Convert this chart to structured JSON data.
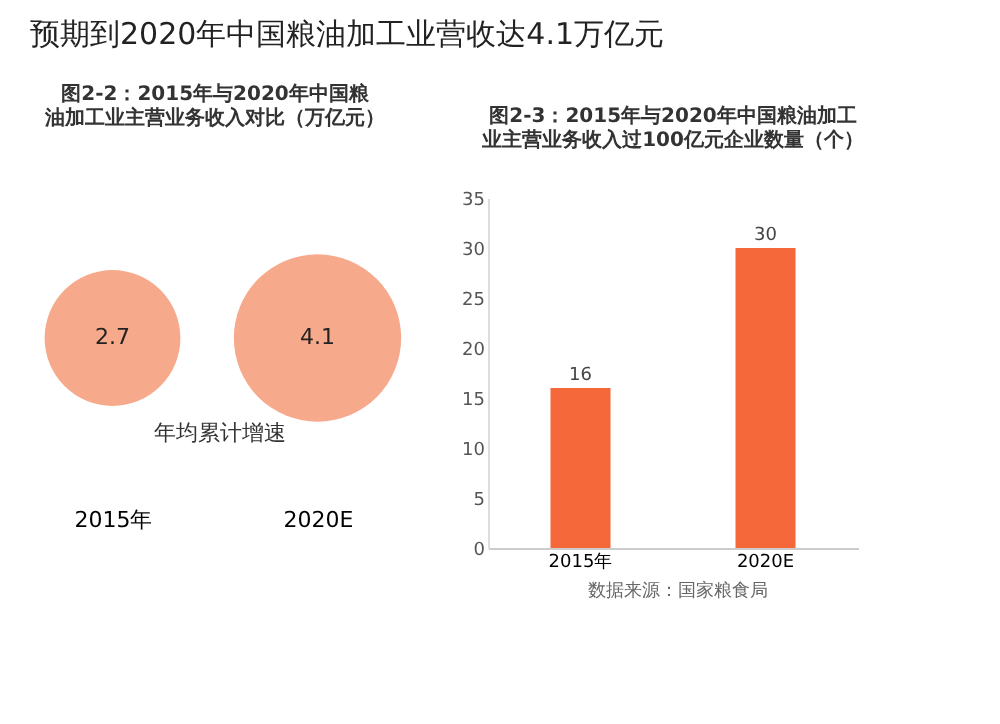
{
  "chart_data": [
    {
      "type": "other",
      "title": "预期到2020年中国粮油加工业营收达4.1万亿元"
    },
    {
      "type": "other",
      "title": "图2-2：2015年与2020年中国粮油加工业主营业务收入对比（万亿元）",
      "categories": [
        "2015年",
        "2020E"
      ],
      "values": [
        2.7,
        4.1
      ],
      "color": "#f7a98c",
      "data_labels": true,
      "annotations": [
        "年均累计增速"
      ]
    },
    {
      "type": "bar",
      "title": "图2-3：2015年与2020年中国粮油加工业主营业务收入过100亿元企业数量（个）",
      "categories": [
        "2015年",
        "2020E"
      ],
      "values": [
        16,
        30
      ],
      "color": "#f4683a",
      "ylim": [
        0,
        35
      ],
      "yticks": [
        0,
        5,
        10,
        15,
        20,
        25,
        30,
        35
      ],
      "data_labels": true,
      "grid": false,
      "annotations": [
        "数据来源：国家粮食局"
      ]
    }
  ]
}
